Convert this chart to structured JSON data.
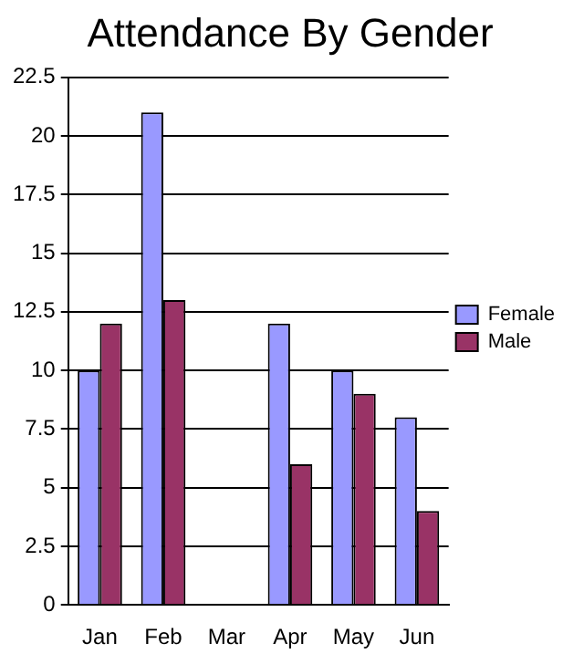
{
  "chart_data": {
    "type": "bar",
    "title": "Attendance By Gender",
    "categories": [
      "Jan",
      "Feb",
      "Mar",
      "Apr",
      "May",
      "Jun"
    ],
    "series": [
      {
        "name": "Female",
        "color": "#9999ff",
        "values": [
          10,
          21,
          0,
          12,
          10,
          8
        ]
      },
      {
        "name": "Male",
        "color": "#993366",
        "values": [
          12,
          13,
          0,
          6,
          9,
          4
        ]
      }
    ],
    "ylim": [
      0,
      22.5
    ],
    "yticks": [
      0,
      2.5,
      5,
      7.5,
      10,
      12.5,
      15,
      17.5,
      20,
      22.5
    ],
    "grid": "y",
    "legend": "right"
  }
}
